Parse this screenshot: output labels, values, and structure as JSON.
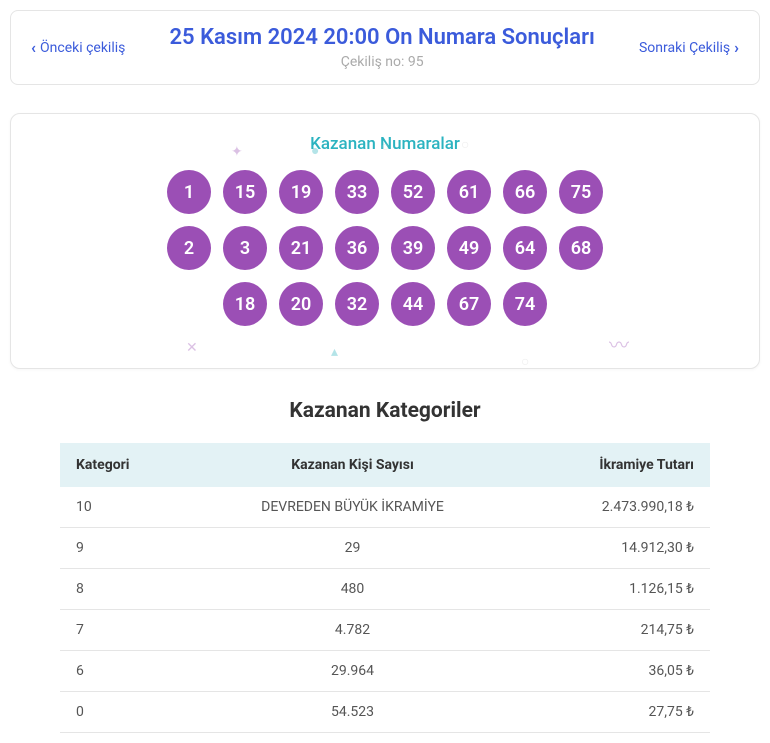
{
  "header": {
    "prev_label": "Önceki çekiliş",
    "next_label": "Sonraki Çekiliş",
    "title": "25 Kasım 2024 20:00 On Numara Sonuçları",
    "draw_no_label": "Çekiliş no: 95"
  },
  "winning_numbers": {
    "title": "Kazanan Numaralar",
    "ball_color": "#9b4fb5",
    "rows": [
      [
        "1",
        "15",
        "19",
        "33",
        "52",
        "61",
        "66",
        "75"
      ],
      [
        "2",
        "3",
        "21",
        "36",
        "39",
        "49",
        "64",
        "68"
      ],
      [
        "18",
        "20",
        "32",
        "44",
        "67",
        "74"
      ]
    ]
  },
  "categories": {
    "title": "Kazanan Kategoriler",
    "columns": [
      "Kategori",
      "Kazanan Kişi Sayısı",
      "İkramiye Tutarı"
    ],
    "rows": [
      {
        "category": "10",
        "winners": "DEVREDEN BÜYÜK İKRAMİYE",
        "prize": "2.473.990,18 ₺"
      },
      {
        "category": "9",
        "winners": "29",
        "prize": "14.912,30 ₺"
      },
      {
        "category": "8",
        "winners": "480",
        "prize": "1.126,15 ₺"
      },
      {
        "category": "7",
        "winners": "4.782",
        "prize": "214,75 ₺"
      },
      {
        "category": "6",
        "winners": "29.964",
        "prize": "36,05 ₺"
      },
      {
        "category": "0",
        "winners": "54.523",
        "prize": "27,75 ₺"
      }
    ]
  },
  "colors": {
    "link": "#3b5bdb",
    "accent": "#2bb3c0",
    "ball": "#9b4fb5",
    "table_header_bg": "#e3f2f5",
    "border": "#e5e5e5"
  }
}
